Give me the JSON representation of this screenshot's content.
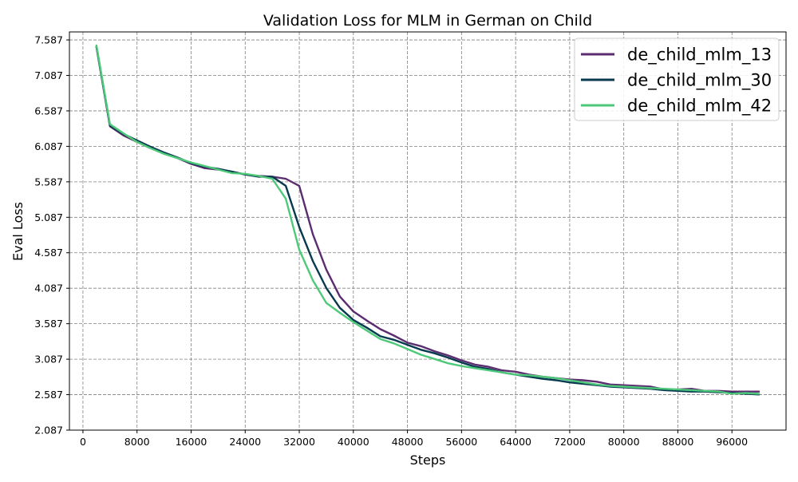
{
  "chart_data": {
    "type": "line",
    "title": "Validation Loss for MLM in German on Child",
    "xlabel": "Steps",
    "ylabel": "Eval Loss",
    "xlim": [
      -2000,
      104000
    ],
    "ylim": [
      2.087,
      7.7
    ],
    "x_ticks": [
      0,
      8000,
      16000,
      24000,
      32000,
      40000,
      48000,
      56000,
      64000,
      72000,
      80000,
      88000,
      96000
    ],
    "y_ticks": [
      2.087,
      2.587,
      3.087,
      3.587,
      4.087,
      4.587,
      5.087,
      5.587,
      6.087,
      6.587,
      7.087,
      7.587
    ],
    "y_tick_labels": [
      "2.087",
      "2.587",
      "3.087",
      "3.587",
      "4.087",
      "4.587",
      "5.087",
      "5.587",
      "6.087",
      "6.587",
      "7.087",
      "7.587"
    ],
    "grid": true,
    "legend_position": "top-right",
    "x": [
      2000,
      4000,
      6000,
      8000,
      10000,
      12000,
      14000,
      16000,
      18000,
      20000,
      22000,
      24000,
      26000,
      28000,
      30000,
      32000,
      34000,
      36000,
      38000,
      40000,
      42000,
      44000,
      46000,
      48000,
      50000,
      52000,
      54000,
      56000,
      58000,
      60000,
      62000,
      64000,
      66000,
      68000,
      70000,
      72000,
      74000,
      76000,
      78000,
      80000,
      82000,
      84000,
      86000,
      88000,
      90000,
      92000,
      94000,
      96000,
      98000,
      100000
    ],
    "series": [
      {
        "name": "de_child_mlm_13",
        "color": "#5b2c6f",
        "values": [
          7.49,
          6.37,
          6.24,
          6.15,
          6.06,
          5.99,
          5.92,
          5.84,
          5.78,
          5.76,
          5.73,
          5.69,
          5.67,
          5.66,
          5.63,
          5.53,
          4.85,
          4.35,
          3.97,
          3.76,
          3.63,
          3.51,
          3.42,
          3.32,
          3.27,
          3.2,
          3.14,
          3.07,
          3.01,
          2.98,
          2.93,
          2.91,
          2.87,
          2.84,
          2.82,
          2.8,
          2.79,
          2.77,
          2.73,
          2.72,
          2.71,
          2.7,
          2.66,
          2.66,
          2.67,
          2.64,
          2.64,
          2.63,
          2.63,
          2.63
        ]
      },
      {
        "name": "de_child_mlm_30",
        "color": "#073a4f",
        "values": [
          7.49,
          6.38,
          6.26,
          6.17,
          6.08,
          6.0,
          5.93,
          5.85,
          5.8,
          5.77,
          5.73,
          5.69,
          5.66,
          5.66,
          5.53,
          4.95,
          4.47,
          4.09,
          3.81,
          3.64,
          3.53,
          3.41,
          3.36,
          3.29,
          3.22,
          3.17,
          3.11,
          3.04,
          2.98,
          2.95,
          2.9,
          2.87,
          2.84,
          2.81,
          2.79,
          2.76,
          2.74,
          2.72,
          2.7,
          2.69,
          2.68,
          2.67,
          2.65,
          2.64,
          2.63,
          2.63,
          2.62,
          2.61,
          2.6,
          2.59
        ]
      },
      {
        "name": "de_child_mlm_42",
        "color": "#4ec97a",
        "values": [
          7.51,
          6.4,
          6.27,
          6.15,
          6.06,
          5.98,
          5.92,
          5.86,
          5.81,
          5.76,
          5.71,
          5.7,
          5.67,
          5.63,
          5.35,
          4.63,
          4.2,
          3.88,
          3.74,
          3.61,
          3.49,
          3.37,
          3.31,
          3.23,
          3.15,
          3.09,
          3.03,
          2.99,
          2.96,
          2.93,
          2.9,
          2.87,
          2.86,
          2.84,
          2.82,
          2.79,
          2.76,
          2.73,
          2.71,
          2.7,
          2.69,
          2.68,
          2.67,
          2.66,
          2.65,
          2.64,
          2.63,
          2.6,
          2.61,
          2.6
        ]
      }
    ]
  }
}
